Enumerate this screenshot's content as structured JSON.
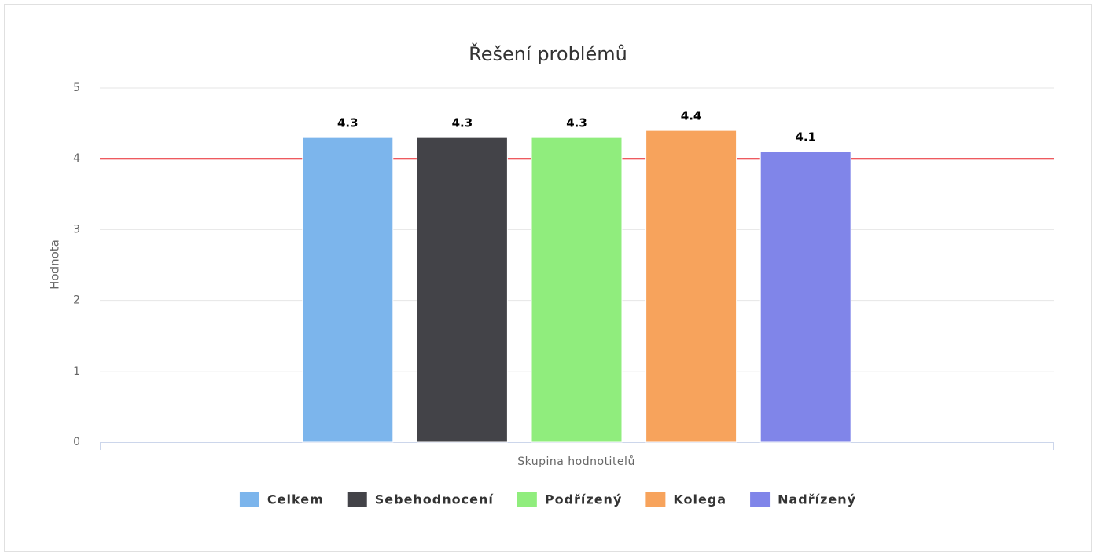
{
  "chart_data": {
    "type": "bar",
    "title": "Řešení problémů",
    "y_axis_title": "Hodnota",
    "x_axis_title": "Skupina hodnotitelů",
    "categories": [
      null
    ],
    "series": [
      {
        "name": "Celkem",
        "color": "#7cb5ec",
        "values": [
          4.3
        ]
      },
      {
        "name": "Sebehodnocení",
        "color": "#434348",
        "values": [
          4.3
        ]
      },
      {
        "name": "Podřízený",
        "color": "#90ed7d",
        "values": [
          4.3
        ]
      },
      {
        "name": "Kolega",
        "color": "#f7a35c",
        "values": [
          4.4
        ]
      },
      {
        "name": "Nadřízený",
        "color": "#8085e9",
        "values": [
          4.1
        ]
      }
    ],
    "ylim": [
      0,
      5
    ],
    "yticks": [
      0,
      1,
      2,
      3,
      4,
      5
    ],
    "grid": true,
    "plot_line": {
      "value": 4,
      "color": "#e8232a"
    },
    "legend": "bottom"
  }
}
